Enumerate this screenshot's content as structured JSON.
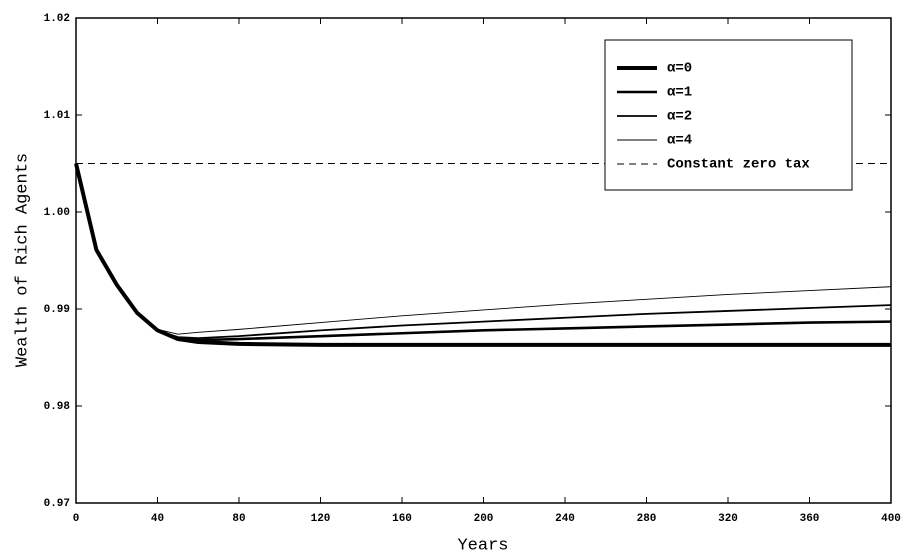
{
  "chart_data": {
    "type": "line",
    "xlabel": "Years",
    "ylabel": "Wealth of Rich Agents",
    "x": [
      0,
      10,
      20,
      30,
      40,
      50,
      60,
      80,
      120,
      160,
      200,
      240,
      280,
      320,
      360,
      400
    ],
    "series": [
      {
        "name": "α=0",
        "color": "#000000",
        "linewidth": 4,
        "linestyle": "solid",
        "values": [
          1.005,
          0.9961,
          0.9925,
          0.9896,
          0.9878,
          0.9869,
          0.9866,
          0.9864,
          0.9863,
          0.9863,
          0.9863,
          0.9863,
          0.9863,
          0.9863,
          0.9863,
          0.9863
        ]
      },
      {
        "name": "α=1",
        "color": "#000000",
        "linewidth": 2.6,
        "linestyle": "solid",
        "values": [
          1.005,
          0.9961,
          0.9925,
          0.9896,
          0.9878,
          0.987,
          0.9868,
          0.9869,
          0.9872,
          0.9875,
          0.9878,
          0.988,
          0.9882,
          0.9884,
          0.9886,
          0.9887
        ]
      },
      {
        "name": "α=2",
        "color": "#000000",
        "linewidth": 1.8,
        "linestyle": "solid",
        "values": [
          1.005,
          0.9961,
          0.9925,
          0.9896,
          0.9878,
          0.9871,
          0.987,
          0.9872,
          0.9878,
          0.9883,
          0.9887,
          0.9891,
          0.9895,
          0.9898,
          0.9901,
          0.9904
        ]
      },
      {
        "name": "α=4",
        "color": "#000000",
        "linewidth": 0.9,
        "linestyle": "solid",
        "values": [
          1.005,
          0.9961,
          0.9925,
          0.9896,
          0.9879,
          0.9874,
          0.9876,
          0.9879,
          0.9886,
          0.9893,
          0.9899,
          0.9905,
          0.991,
          0.9915,
          0.9919,
          0.9923
        ]
      },
      {
        "name": "Constant zero tax",
        "color": "#000000",
        "linewidth": 1,
        "linestyle": "dashed",
        "values": [
          1.005,
          1.005,
          1.005,
          1.005,
          1.005,
          1.005,
          1.005,
          1.005,
          1.005,
          1.005,
          1.005,
          1.005,
          1.005,
          1.005,
          1.005,
          1.005
        ]
      }
    ],
    "xlim": [
      0,
      400
    ],
    "xticks": [
      0,
      40,
      80,
      120,
      160,
      200,
      240,
      280,
      320,
      360,
      400
    ],
    "ylim": [
      0.97,
      1.02
    ],
    "yticks": [
      0.97,
      0.98,
      0.99,
      {
        "value": 1,
        "label": "1.00"
      },
      1.01,
      1.02
    ],
    "grid": false,
    "legend": "upper right"
  }
}
